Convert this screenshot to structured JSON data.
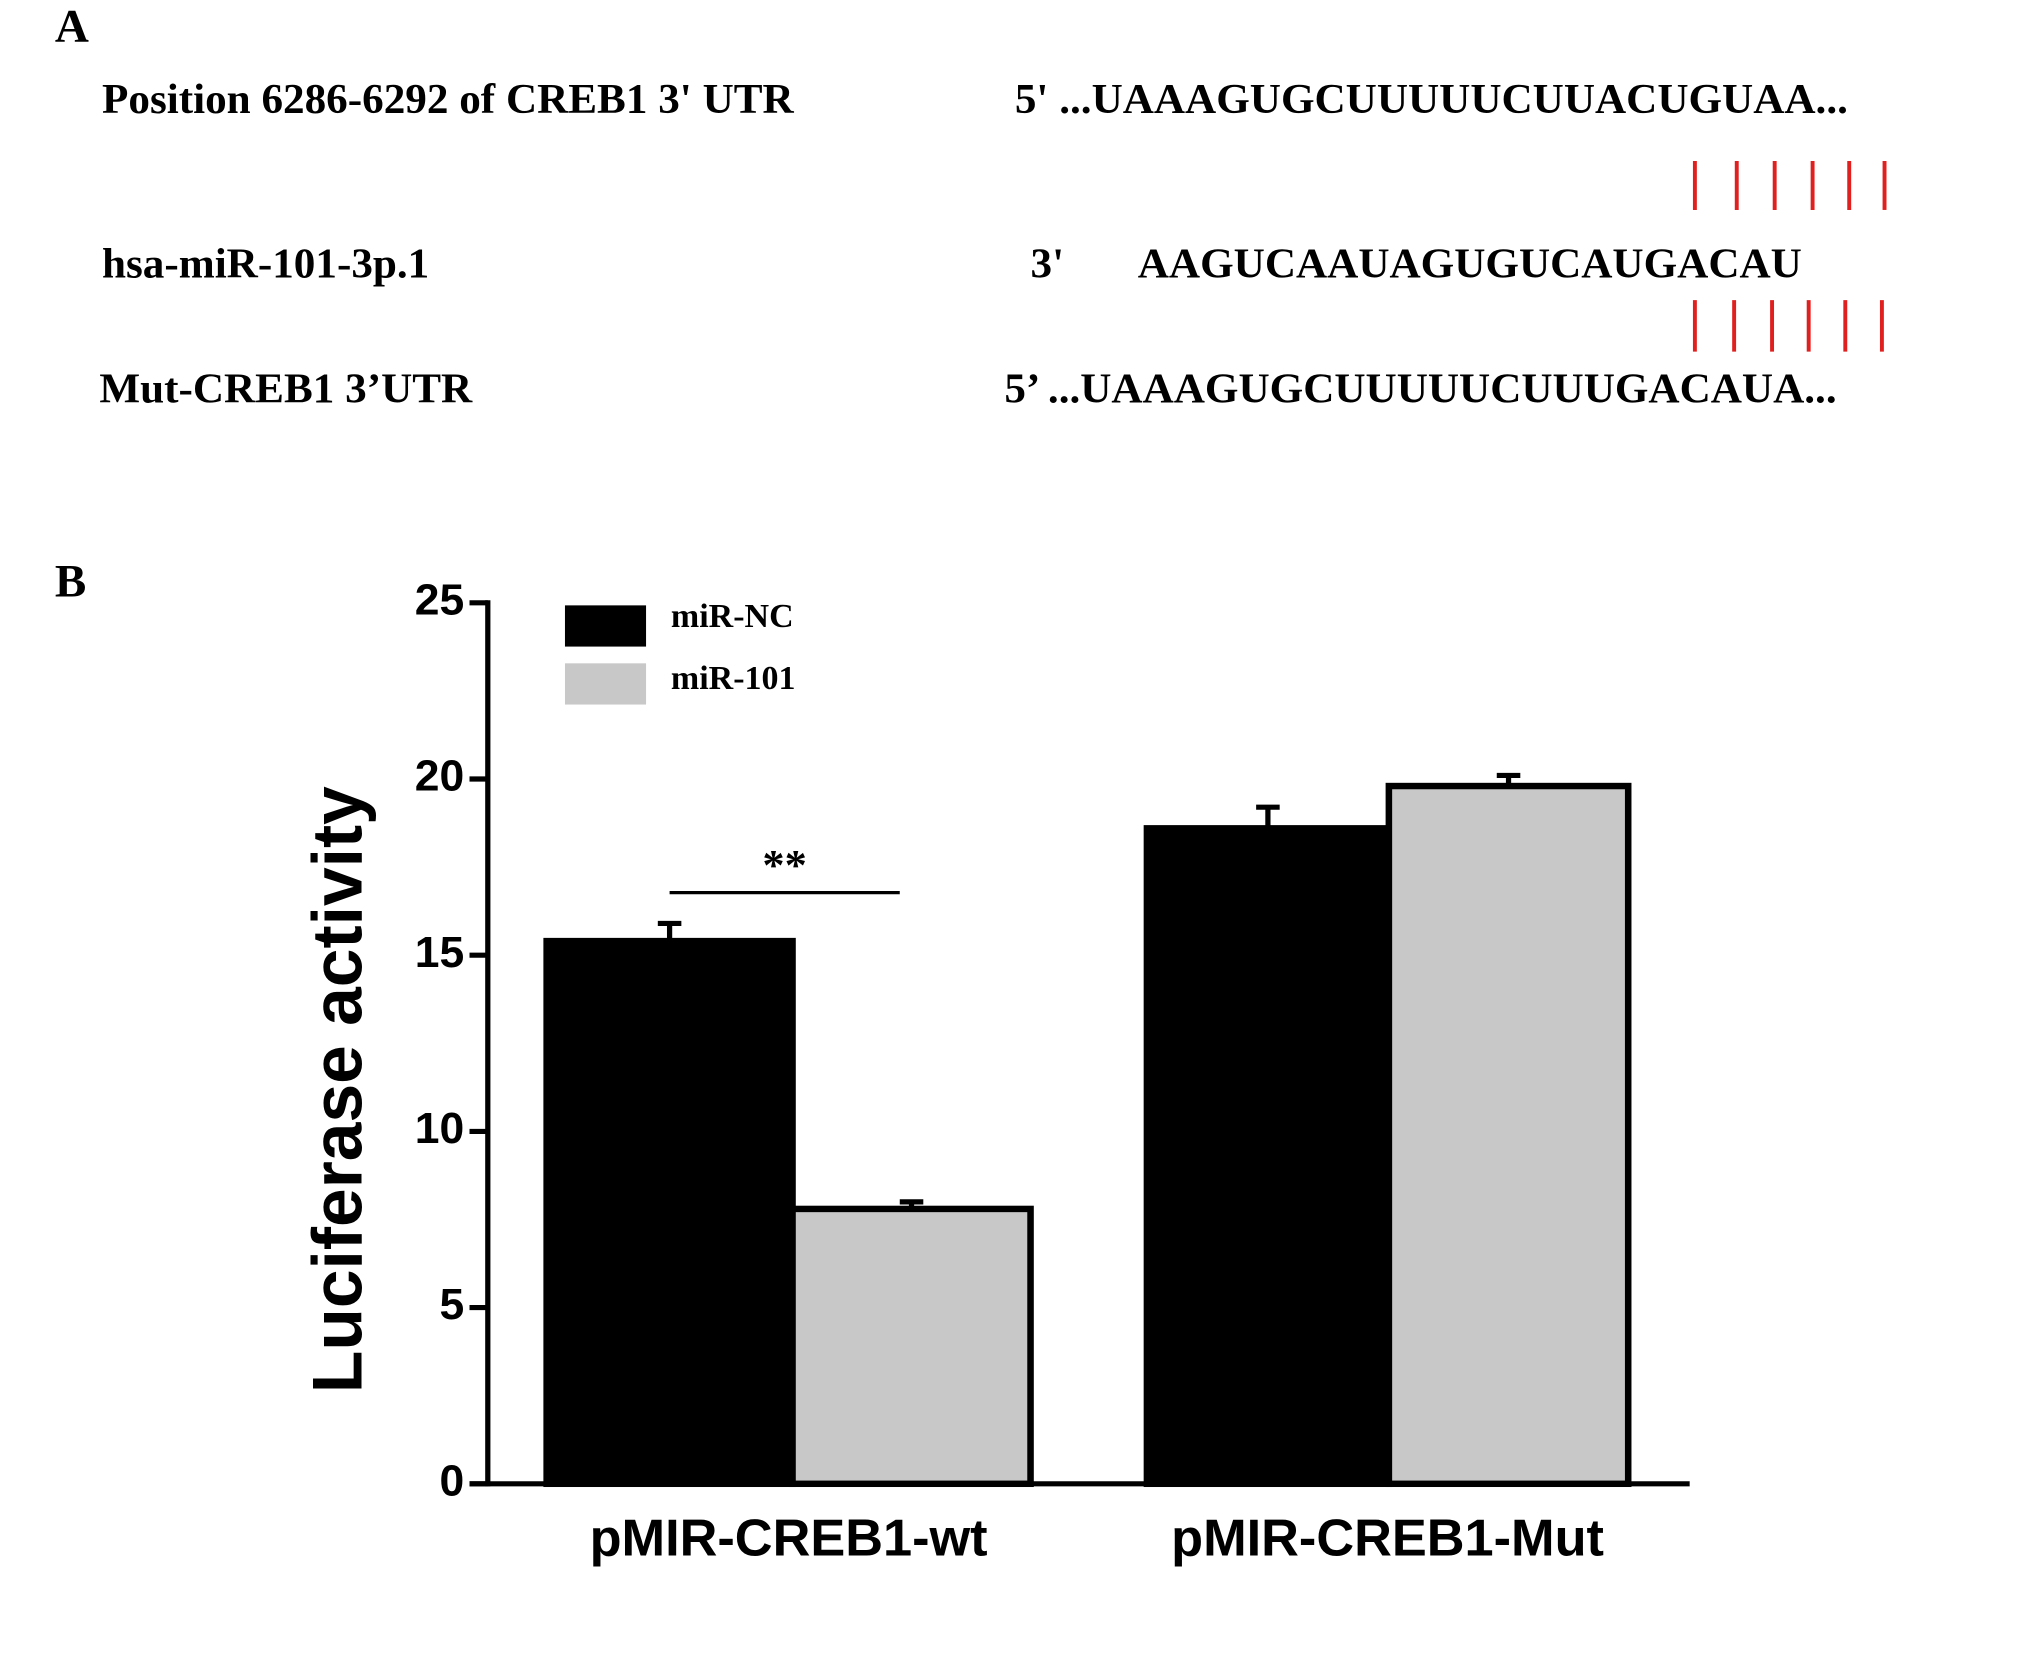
{
  "panel_a": {
    "label": "A",
    "rows": [
      {
        "name": "Position 6286-6292 of CREB1 3' UTR",
        "sequence": "5' ...UAAAGUGCUUUUUCUUACUGUAA..."
      },
      {
        "name": "hsa-miR-101-3p.1",
        "end": "3'",
        "sequence": "AAGUCAAUAGUGUCAUGACAU"
      },
      {
        "name": "Mut-CREB1 3’UTR",
        "sequence": "5’ ...UAAAGUGCUUUUUCUUUGACAUA..."
      }
    ]
  },
  "chart_data": {
    "type": "bar",
    "panel_label": "B",
    "y_label": "Luciferase activity",
    "categories": [
      "pMIR-CREB1-wt",
      "pMIR-CREB1-Mut"
    ],
    "series": [
      {
        "name": "miR-NC",
        "color": "#000000",
        "values": [
          15.4,
          18.6
        ],
        "errors": [
          0.5,
          0.6
        ]
      },
      {
        "name": "miR-101",
        "color": "#c8c8c8",
        "values": [
          7.8,
          19.8
        ],
        "errors": [
          0.2,
          0.3
        ]
      }
    ],
    "ylim": [
      0,
      25
    ],
    "yticks": [
      0,
      5,
      10,
      15,
      20,
      25
    ],
    "annotation": "**"
  }
}
